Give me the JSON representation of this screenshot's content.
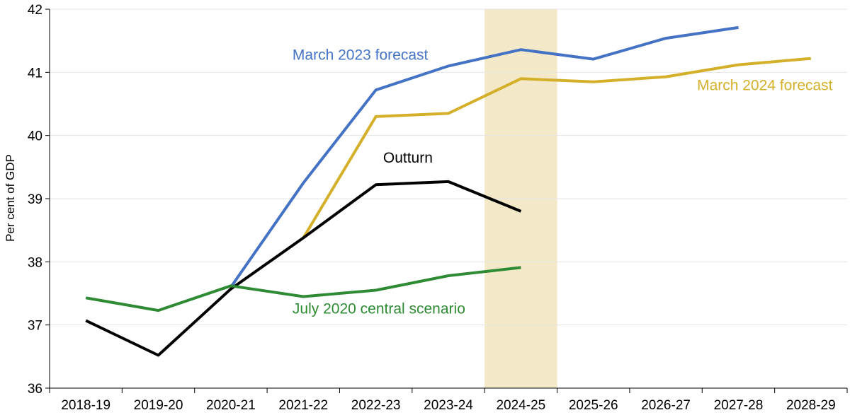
{
  "chart_data": {
    "type": "line",
    "ylabel": "Per cent of GDP",
    "ylim": [
      36,
      42
    ],
    "yticks": [
      "36",
      "37",
      "38",
      "39",
      "40",
      "41",
      "42"
    ],
    "categories": [
      "2018-19",
      "2019-20",
      "2020-21",
      "2021-22",
      "2022-23",
      "2023-24",
      "2024-25",
      "2025-26",
      "2026-27",
      "2027-28",
      "2028-29"
    ],
    "highlight_category": "2024-25",
    "highlight_color": "#f3e9c8",
    "grid": "horizontal",
    "series": [
      {
        "name": "March 2023 forecast",
        "color": "#4472c4",
        "values": [
          null,
          null,
          37.6,
          39.25,
          40.72,
          41.1,
          41.36,
          41.21,
          41.54,
          41.71,
          null
        ]
      },
      {
        "name": "March 2024 forecast",
        "color": "#d4b02a",
        "values": [
          null,
          null,
          null,
          38.38,
          40.3,
          40.35,
          40.9,
          40.85,
          40.93,
          41.12,
          41.22
        ]
      },
      {
        "name": "Outturn",
        "color": "#000000",
        "values": [
          37.07,
          36.52,
          37.57,
          38.38,
          39.22,
          39.27,
          38.8,
          null,
          null,
          null,
          null
        ]
      },
      {
        "name": "July 2020 central scenario",
        "color": "#2e8b34",
        "values": [
          37.43,
          37.23,
          37.62,
          37.45,
          37.55,
          37.78,
          37.91,
          null,
          null,
          null,
          null
        ]
      }
    ]
  }
}
